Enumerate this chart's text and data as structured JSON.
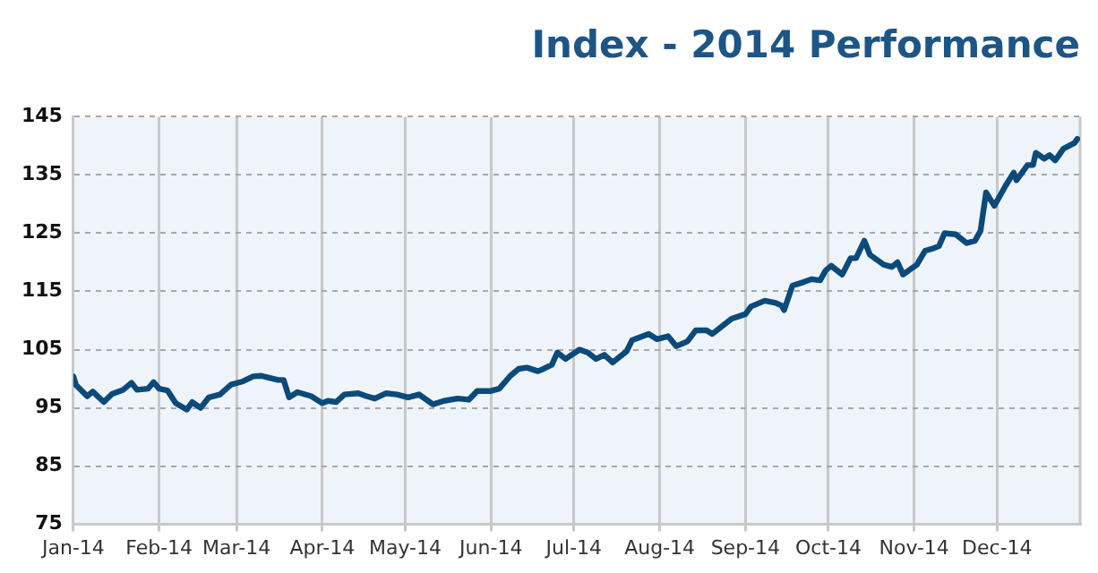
{
  "chart_data": {
    "type": "line",
    "title": "Index - 2014 Performance",
    "xlim": [
      "2014-01-01",
      "2014-12-31"
    ],
    "xticks": [
      {
        "value": "2014-01-01",
        "label": "Jan-14"
      },
      {
        "value": "2014-02-01",
        "label": "Feb-14"
      },
      {
        "value": "2014-03-01",
        "label": "Mar-14"
      },
      {
        "value": "2014-04-01",
        "label": "Apr-14"
      },
      {
        "value": "2014-05-01",
        "label": "May-14"
      },
      {
        "value": "2014-06-01",
        "label": "Jun-14"
      },
      {
        "value": "2014-07-01",
        "label": "Jul-14"
      },
      {
        "value": "2014-08-01",
        "label": "Aug-14"
      },
      {
        "value": "2014-09-01",
        "label": "Sep-14"
      },
      {
        "value": "2014-10-01",
        "label": "Oct-14"
      },
      {
        "value": "2014-11-01",
        "label": "Nov-14"
      },
      {
        "value": "2014-12-01",
        "label": "Dec-14"
      }
    ],
    "ylim": [
      75,
      145
    ],
    "yticks": [
      75,
      85,
      95,
      105,
      115,
      125,
      135,
      145
    ],
    "grid": true,
    "marker": "none",
    "line_style": "solid",
    "x": [
      "2014-01-01",
      "2014-01-02",
      "2014-01-06",
      "2014-01-08",
      "2014-01-12",
      "2014-01-15",
      "2014-01-19",
      "2014-01-22",
      "2014-01-24",
      "2014-01-28",
      "2014-01-30",
      "2014-02-01",
      "2014-02-04",
      "2014-02-07",
      "2014-02-11",
      "2014-02-13",
      "2014-02-16",
      "2014-02-19",
      "2014-02-23",
      "2014-02-27",
      "2014-03-03",
      "2014-03-07",
      "2014-03-10",
      "2014-03-16",
      "2014-03-18",
      "2014-03-20",
      "2014-03-23",
      "2014-03-28",
      "2014-04-01",
      "2014-04-03",
      "2014-04-06",
      "2014-04-09",
      "2014-04-14",
      "2014-04-17",
      "2014-04-20",
      "2014-04-24",
      "2014-04-28",
      "2014-05-02",
      "2014-05-06",
      "2014-05-11",
      "2014-05-15",
      "2014-05-20",
      "2014-05-24",
      "2014-05-27",
      "2014-06-01",
      "2014-06-04",
      "2014-06-08",
      "2014-06-11",
      "2014-06-14",
      "2014-06-18",
      "2014-06-20",
      "2014-06-23",
      "2014-06-25",
      "2014-06-28",
      "2014-07-03",
      "2014-07-06",
      "2014-07-09",
      "2014-07-12",
      "2014-07-15",
      "2014-07-20",
      "2014-07-22",
      "2014-07-28",
      "2014-07-31",
      "2014-08-04",
      "2014-08-07",
      "2014-08-11",
      "2014-08-14",
      "2014-08-18",
      "2014-08-20",
      "2014-08-27",
      "2014-09-01",
      "2014-09-03",
      "2014-09-08",
      "2014-09-12",
      "2014-09-14",
      "2014-09-15",
      "2014-09-18",
      "2014-09-22",
      "2014-09-25",
      "2014-09-28",
      "2014-09-30",
      "2014-10-02",
      "2014-10-06",
      "2014-10-09",
      "2014-10-11",
      "2014-10-14",
      "2014-10-16",
      "2014-10-21",
      "2014-10-24",
      "2014-10-26",
      "2014-10-28",
      "2014-11-02",
      "2014-11-05",
      "2014-11-08",
      "2014-11-10",
      "2014-11-12",
      "2014-11-16",
      "2014-11-20",
      "2014-11-23",
      "2014-11-25",
      "2014-11-27",
      "2014-11-30",
      "2014-12-04",
      "2014-12-07",
      "2014-12-08",
      "2014-12-12",
      "2014-12-14",
      "2014-12-15",
      "2014-12-18",
      "2014-12-20",
      "2014-12-22",
      "2014-12-25",
      "2014-12-29",
      "2014-12-30"
    ],
    "series": [
      {
        "color": "#0b4a7a",
        "values": [
          100.4,
          98.9,
          97,
          97.8,
          96,
          97.4,
          98.1,
          99.3,
          98.1,
          98.3,
          99.4,
          98.3,
          98,
          95.8,
          94.7,
          96,
          95,
          96.8,
          97.3,
          99,
          99.5,
          100.4,
          100.5,
          99.8,
          99.8,
          96.8,
          97.7,
          97,
          95.8,
          96.2,
          96,
          97.3,
          97.5,
          97,
          96.6,
          97.5,
          97.3,
          96.8,
          97.3,
          95.6,
          96.2,
          96.6,
          96.4,
          97.9,
          97.9,
          98.3,
          100.5,
          101.7,
          101.9,
          101.3,
          101.7,
          102.4,
          104.5,
          103.4,
          105,
          104.5,
          103.4,
          104.1,
          102.8,
          104.7,
          106.6,
          107.7,
          106.8,
          107.3,
          105.6,
          106.4,
          108.3,
          108.3,
          107.7,
          110.3,
          111.1,
          112.4,
          113.4,
          113,
          112.6,
          111.8,
          116,
          116.6,
          117.1,
          116.9,
          118.6,
          119.4,
          117.9,
          120.7,
          120.7,
          123.7,
          121.3,
          119.6,
          119.2,
          120,
          117.9,
          119.6,
          122,
          122.4,
          122.8,
          125,
          124.8,
          123.3,
          123.7,
          125.4,
          132,
          129.7,
          133.1,
          135.4,
          134.1,
          136.7,
          136.7,
          138.8,
          137.8,
          138.4,
          137.5,
          139.5,
          140.5,
          141.2
        ]
      }
    ]
  }
}
